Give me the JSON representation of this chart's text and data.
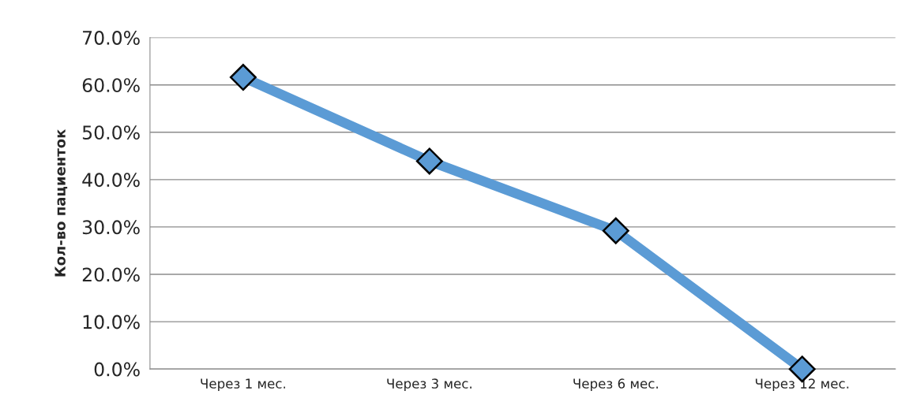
{
  "chart_data": {
    "type": "line",
    "ylabel": "Кол-во пациенток",
    "categories": [
      "Через 1 мес.",
      "Через 3 мес.",
      "Через 6 мес.",
      "Через 12 мес."
    ],
    "series": [
      {
        "color": "#5b9bd5",
        "values": [
          61.6,
          43.9,
          29.2,
          0
        ]
      }
    ],
    "ylim": [
      0,
      70
    ],
    "yticks": [
      {
        "value": 0,
        "label": "0.0%"
      },
      {
        "value": 10,
        "label": "10.0%"
      },
      {
        "value": 20,
        "label": "20.0%"
      },
      {
        "value": 30,
        "label": "30.0%"
      },
      {
        "value": 40,
        "label": "40.0%"
      },
      {
        "value": 50,
        "label": "50.0%"
      },
      {
        "value": 60,
        "label": "60.0%"
      },
      {
        "value": 70,
        "label": "70.0%"
      }
    ],
    "grid": "y",
    "marker": "diamond",
    "line_style": "solid"
  }
}
